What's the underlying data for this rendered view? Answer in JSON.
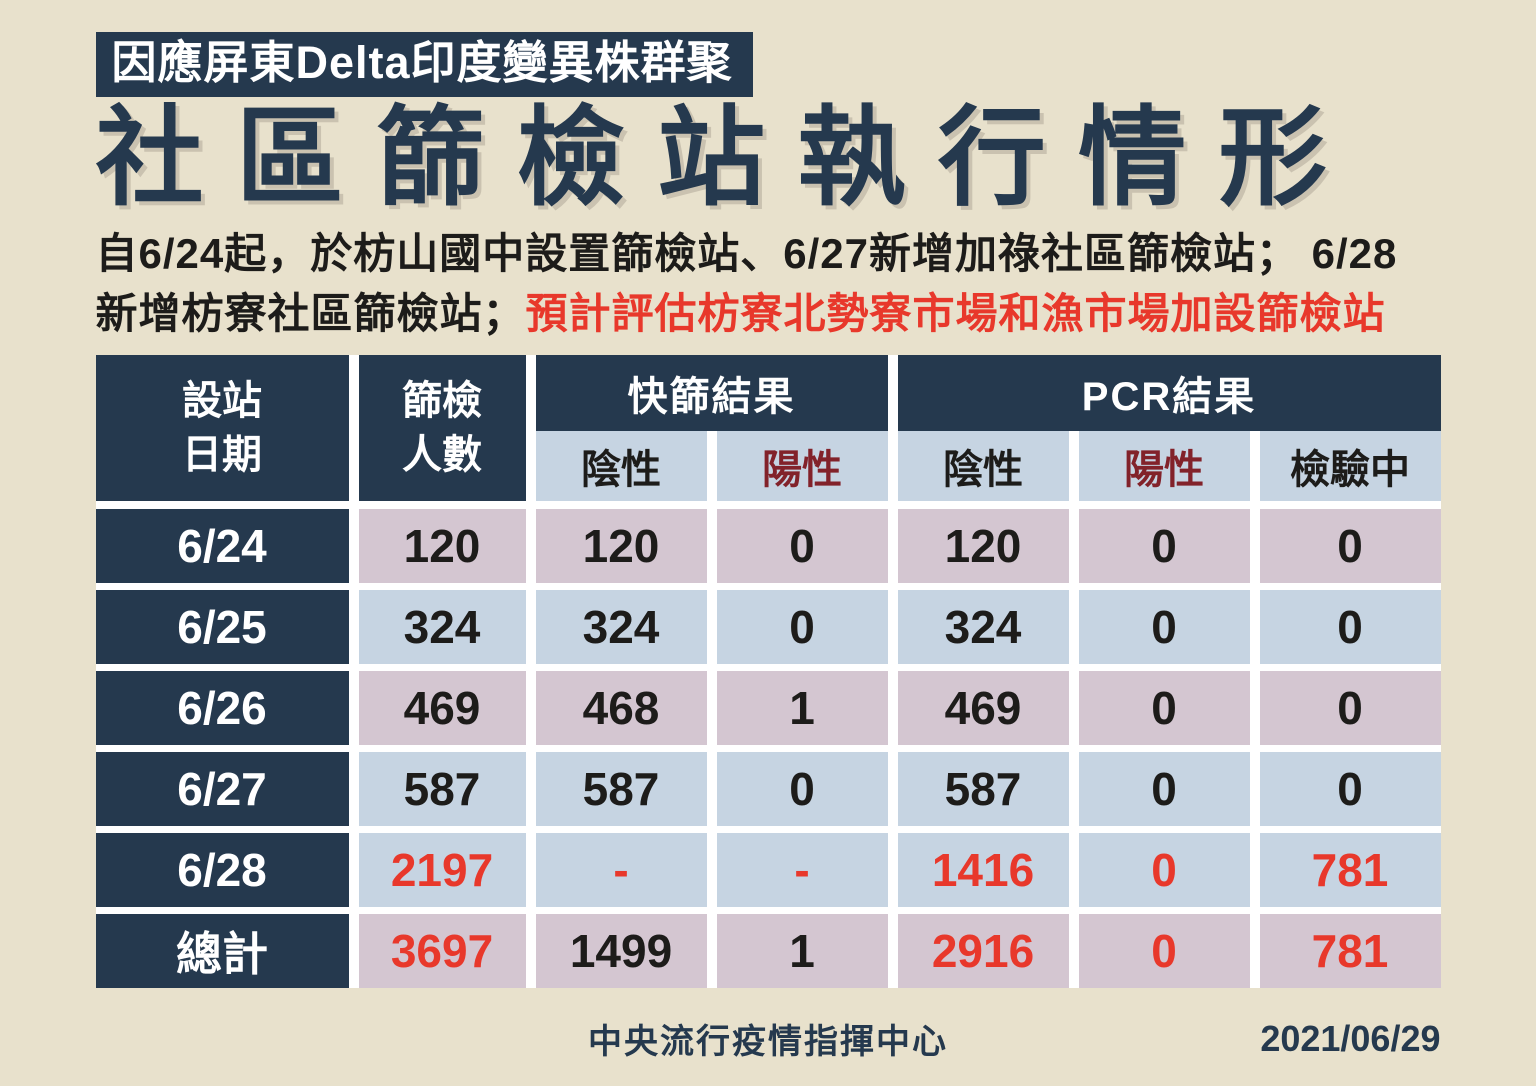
{
  "palette": {
    "background": "#e8e1cc",
    "navy": "#25394e",
    "pink_cell": "#d4c6d1",
    "blue_cell": "#c6d4e2",
    "bright_red": "#e8382b",
    "maroon": "#82222a",
    "white": "#ffffff"
  },
  "banner": {
    "text": "因應屏東Delta印度變異株群聚"
  },
  "title": {
    "text": "社區篩檢站執行情形"
  },
  "subtitle": {
    "line1": "自6/24起，於枋山國中設置篩檢站、6/27新增加祿社區篩檢站； 6/28",
    "line2_dark": "新增枋寮社區篩檢站；",
    "line2_red": "預計評估枋寮北勢寮市場和漁市場加設篩檢站"
  },
  "table": {
    "corner_headers": [
      {
        "line1": "設站",
        "line2": "日期"
      },
      {
        "line1": "篩檢",
        "line2": "人數"
      }
    ],
    "group_headers": {
      "rapid": "快篩結果",
      "pcr": "PCR結果"
    },
    "sub_headers": [
      {
        "label": "陰性",
        "maroon": false
      },
      {
        "label": "陽性",
        "maroon": true
      },
      {
        "label": "陰性",
        "maroon": false
      },
      {
        "label": "陽性",
        "maroon": true
      },
      {
        "label": "檢驗中",
        "maroon": false
      }
    ],
    "rows": [
      {
        "date": "6/24",
        "tint": "pink",
        "cells": [
          {
            "v": "120"
          },
          {
            "v": "120"
          },
          {
            "v": "0"
          },
          {
            "v": "120"
          },
          {
            "v": "0"
          },
          {
            "v": "0"
          }
        ]
      },
      {
        "date": "6/25",
        "tint": "blue",
        "cells": [
          {
            "v": "324"
          },
          {
            "v": "324"
          },
          {
            "v": "0"
          },
          {
            "v": "324"
          },
          {
            "v": "0"
          },
          {
            "v": "0"
          }
        ]
      },
      {
        "date": "6/26",
        "tint": "pink",
        "cells": [
          {
            "v": "469"
          },
          {
            "v": "468"
          },
          {
            "v": "1"
          },
          {
            "v": "469"
          },
          {
            "v": "0"
          },
          {
            "v": "0"
          }
        ]
      },
      {
        "date": "6/27",
        "tint": "blue",
        "cells": [
          {
            "v": "587"
          },
          {
            "v": "587"
          },
          {
            "v": "0"
          },
          {
            "v": "587"
          },
          {
            "v": "0"
          },
          {
            "v": "0"
          }
        ]
      },
      {
        "date": "6/28",
        "tint": "blue",
        "cells": [
          {
            "v": "2197",
            "red": true
          },
          {
            "v": "-",
            "red": true
          },
          {
            "v": "-",
            "red": true
          },
          {
            "v": "1416",
            "red": true
          },
          {
            "v": "0",
            "red": true
          },
          {
            "v": "781",
            "red": true
          }
        ]
      },
      {
        "date": "總計",
        "tint": "pink",
        "cells": [
          {
            "v": "3697",
            "red": true
          },
          {
            "v": "1499"
          },
          {
            "v": "1"
          },
          {
            "v": "2916",
            "red": true
          },
          {
            "v": "0",
            "red": true
          },
          {
            "v": "781",
            "red": true
          }
        ]
      }
    ]
  },
  "footer": {
    "org": "中央流行疫情指揮中心",
    "date": "2021/06/29"
  }
}
